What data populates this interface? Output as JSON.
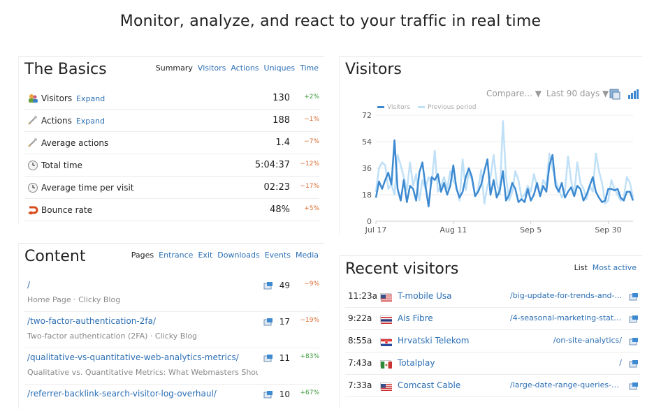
{
  "hero": "Monitor, analyze, and react to your traffic in real time",
  "basics": {
    "title": "The Basics",
    "tabs": [
      {
        "label": "Summary",
        "active": true
      },
      {
        "label": "Visitors"
      },
      {
        "label": "Actions"
      },
      {
        "label": "Uniques"
      },
      {
        "label": "Time"
      }
    ],
    "rows": [
      {
        "icon": "visitors-icon",
        "label": "Visitors",
        "expand": "Expand",
        "value": "130",
        "change": "+2%",
        "dir": "pos"
      },
      {
        "icon": "actions-icon",
        "label": "Actions",
        "expand": "Expand",
        "value": "188",
        "change": "−1%",
        "dir": "neg"
      },
      {
        "icon": "actions-icon",
        "label": "Average actions",
        "expand": "",
        "value": "1.4",
        "change": "−7%",
        "dir": "neg"
      },
      {
        "icon": "clock-icon",
        "label": "Total time",
        "expand": "",
        "value": "5:04:37",
        "change": "−12%",
        "dir": "neg"
      },
      {
        "icon": "clock-icon",
        "label": "Average time per visit",
        "expand": "",
        "value": "02:23",
        "change": "−17%",
        "dir": "neg"
      },
      {
        "icon": "bounce-icon",
        "label": "Bounce rate",
        "expand": "",
        "value": "48%",
        "change": "+5%",
        "dir": "neg"
      }
    ]
  },
  "visitors_panel": {
    "title": "Visitors",
    "compare": "Compare... ▼",
    "range": "Last 90 days ▼"
  },
  "chart_data": {
    "type": "line",
    "x_ticks": [
      "Jul 17",
      "Aug 11",
      "Sep 5",
      "Sep 30"
    ],
    "y_ticks": [
      0,
      18,
      36,
      54,
      72
    ],
    "ylim": [
      0,
      72
    ],
    "legend": [
      "Visitors",
      "Previous period"
    ],
    "colors": {
      "current": "#3d8ad1",
      "previous": "#bfe0f7"
    },
    "series": [
      {
        "name": "Visitors",
        "values": [
          16,
          27,
          22,
          28,
          33,
          25,
          55,
          22,
          14,
          28,
          13,
          24,
          22,
          14,
          33,
          40,
          24,
          10,
          30,
          28,
          32,
          20,
          26,
          18,
          24,
          38,
          22,
          16,
          20,
          30,
          36,
          30,
          17,
          20,
          25,
          34,
          42,
          18,
          28,
          16,
          21,
          34,
          14,
          18,
          26,
          22,
          13,
          15,
          13,
          22,
          14,
          18,
          26,
          17,
          24,
          20,
          38,
          45,
          24,
          20,
          26,
          16,
          20,
          23,
          17,
          24,
          22,
          14,
          18,
          24,
          30,
          20,
          16,
          13,
          14,
          22,
          22,
          21,
          22,
          16,
          14,
          20,
          20,
          14
        ]
      },
      {
        "name": "Previous period",
        "values": [
          20,
          36,
          40,
          38,
          22,
          25,
          18,
          45,
          38,
          30,
          21,
          40,
          24,
          32,
          14,
          28,
          22,
          30,
          26,
          48,
          20,
          24,
          30,
          22,
          34,
          27,
          24,
          14,
          42,
          21,
          33,
          28,
          18,
          22,
          35,
          12,
          24,
          30,
          45,
          26,
          18,
          68,
          30,
          14,
          20,
          34,
          28,
          16,
          18,
          24,
          20,
          32,
          24,
          18,
          28,
          24,
          46,
          36,
          28,
          22,
          16,
          20,
          44,
          28,
          18,
          40,
          26,
          22,
          15,
          24,
          20,
          46,
          34,
          26,
          12,
          14,
          28,
          22,
          18,
          14,
          16,
          30,
          26,
          16
        ]
      }
    ]
  },
  "content": {
    "title": "Content",
    "tabs": [
      {
        "label": "Pages",
        "active": true
      },
      {
        "label": "Entrance"
      },
      {
        "label": "Exit"
      },
      {
        "label": "Downloads"
      },
      {
        "label": "Events"
      },
      {
        "label": "Media"
      }
    ],
    "rows": [
      {
        "path": "/",
        "subtitle": "Home Page · Clicky Blog",
        "count": "49",
        "change": "−9%",
        "dir": "neg"
      },
      {
        "path": "/two-factor-authentication-2fa/",
        "subtitle": "Two-factor authentication (2FA) · Clicky Blog",
        "count": "17",
        "change": "−19%",
        "dir": "neg"
      },
      {
        "path": "/qualitative-vs-quantitative-web-analytics-metrics/",
        "subtitle": "Qualitative vs. Quantitative Metrics: What Webmasters Should...",
        "count": "11",
        "change": "+83%",
        "dir": "pos"
      },
      {
        "path": "/referrer-backlink-search-visitor-log-overhaul/",
        "subtitle": "",
        "count": "10",
        "change": "+67%",
        "dir": "pos"
      }
    ]
  },
  "recent": {
    "title": "Recent visitors",
    "tabs": [
      {
        "label": "List",
        "active": true
      },
      {
        "label": "Most active"
      }
    ],
    "rows": [
      {
        "time": "11:23a",
        "flag": "us",
        "isp": "T-mobile Usa",
        "page": "/big-update-for-trends-and-..."
      },
      {
        "time": "9:22a",
        "flag": "th",
        "isp": "Ais Fibre",
        "page": "/4-seasonal-marketing-stats..."
      },
      {
        "time": "8:55a",
        "flag": "hr",
        "isp": "Hrvatski Telekom",
        "page": "/on-site-analytics/"
      },
      {
        "time": "7:43a",
        "flag": "mx",
        "isp": "Totalplay",
        "page": "/"
      },
      {
        "time": "7:33a",
        "flag": "us",
        "isp": "Comcast Cable",
        "page": "/large-date-range-queries-n..."
      }
    ]
  }
}
